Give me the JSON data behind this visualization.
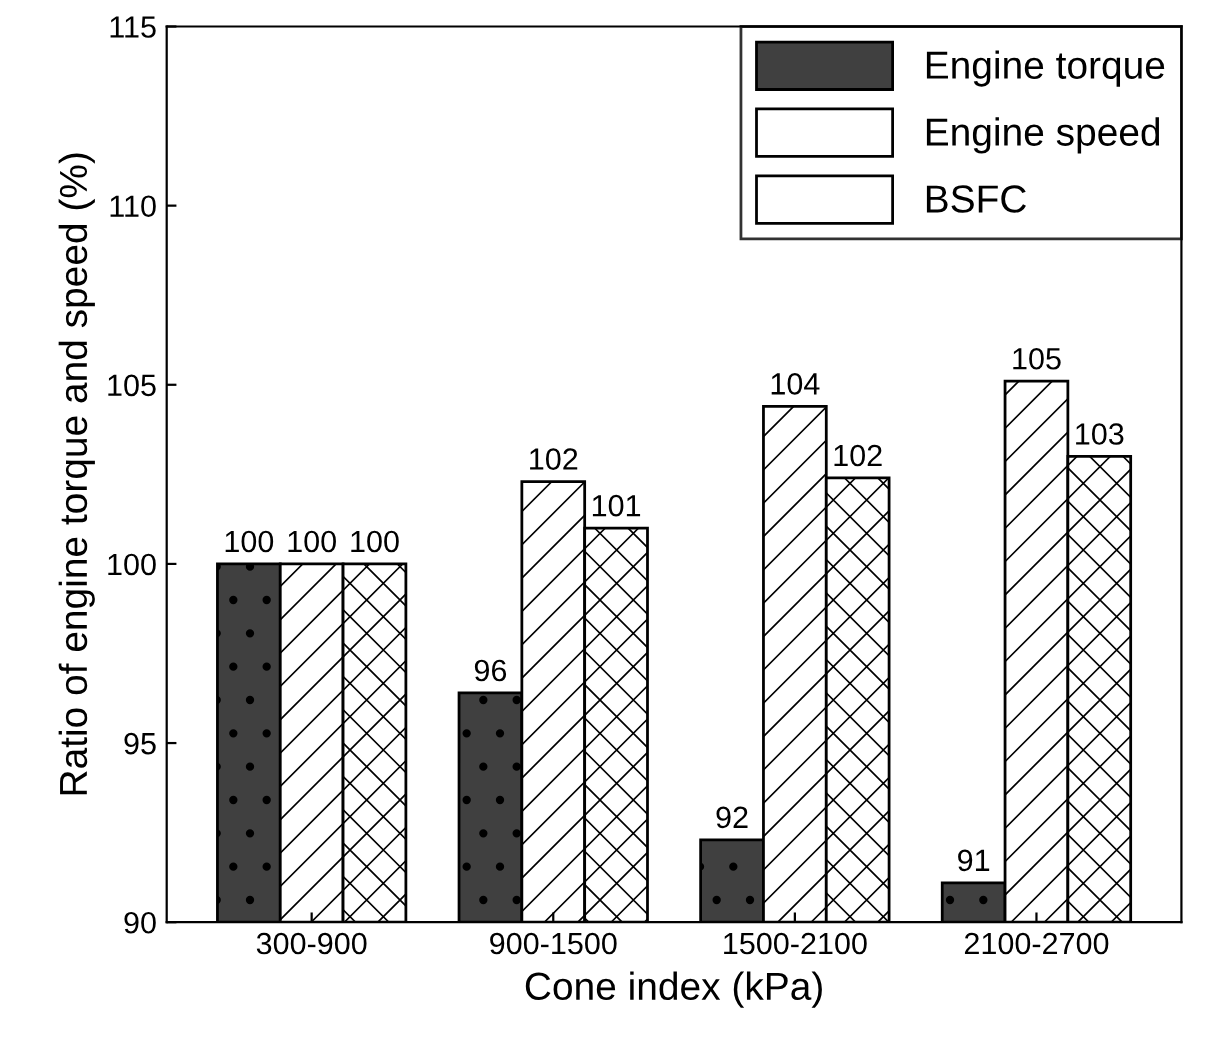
{
  "chart_data": {
    "type": "bar",
    "xlabel": "Cone index (kPa)",
    "ylabel": "Ratio of engine torque and speed (%)",
    "categories": [
      "300-900",
      "900-1500",
      "1500-2100",
      "2100-2700"
    ],
    "series": [
      {
        "name": "Engine torque",
        "color": "#404040",
        "values": [
          100,
          96.4,
          92.3,
          91.1
        ],
        "value_labels": [
          "100",
          "96",
          "92",
          "91"
        ]
      },
      {
        "name": "Engine speed",
        "color": "#ffffff",
        "values": [
          100,
          102.3,
          104.4,
          105.1
        ],
        "value_labels": [
          "100",
          "102",
          "104",
          "105"
        ]
      },
      {
        "name": "BSFC",
        "color": "#ffffff",
        "values": [
          100,
          101.0,
          102.4,
          103.0
        ],
        "value_labels": [
          "100",
          "101",
          "102",
          "103"
        ]
      }
    ],
    "ylim": [
      90,
      115
    ],
    "yticks": [
      90,
      95,
      100,
      105,
      110,
      115
    ],
    "legend": "top right",
    "grid": false
  }
}
